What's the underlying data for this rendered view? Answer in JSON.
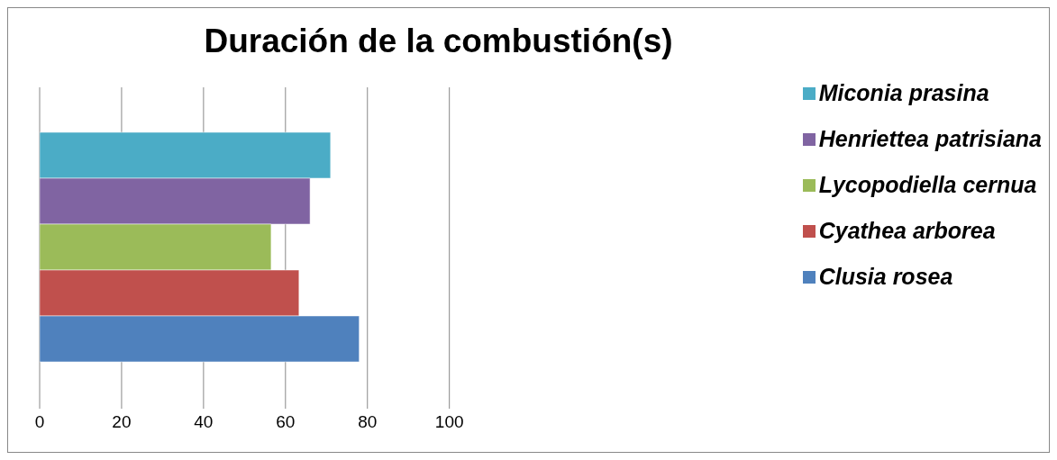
{
  "chart_data": {
    "type": "bar",
    "orientation": "horizontal",
    "title": "Duración de la combustión(s)",
    "categories": [
      null
    ],
    "series": [
      {
        "name": "Miconia prasina",
        "color": "#4bacc6",
        "values": [
          71
        ]
      },
      {
        "name": "Henriettea patrisiana",
        "color": "#8064a2",
        "values": [
          66
        ]
      },
      {
        "name": "Lycopodiella cernua",
        "color": "#9bbb59",
        "values": [
          56.5
        ]
      },
      {
        "name": "Cyathea arborea",
        "color": "#c0504d",
        "values": [
          63.3
        ]
      },
      {
        "name": "Clusia rosea",
        "color": "#4f81bd",
        "values": [
          78
        ]
      }
    ],
    "xlim": [
      0,
      100
    ],
    "xticks": [
      0,
      20,
      40,
      60,
      80,
      100
    ],
    "grid": "x",
    "legend": "right"
  }
}
